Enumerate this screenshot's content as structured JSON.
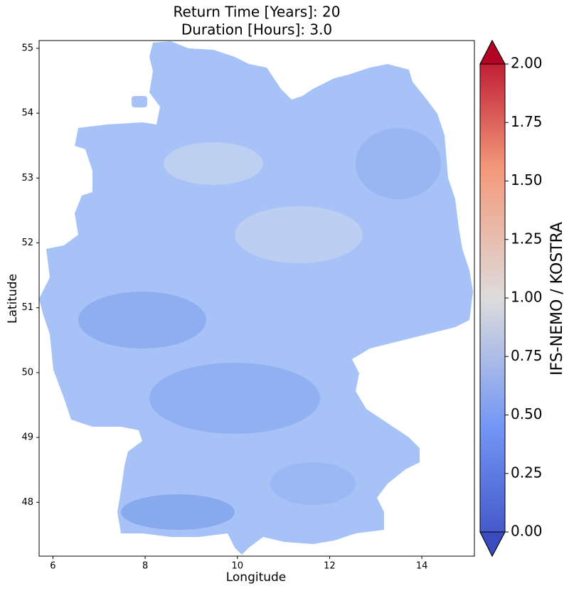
{
  "chart_data": {
    "type": "map",
    "title": "Return Time [Years]: 20",
    "subtitle": "Duration [Hours]: 3.0",
    "x_label": "Longitude",
    "y_label": "Latitude",
    "xlim": [
      5.7,
      15.14
    ],
    "ylim": [
      47.17,
      55.12
    ],
    "xticks": [
      6,
      8,
      10,
      12,
      14
    ],
    "yticks": [
      48,
      49,
      50,
      51,
      52,
      53,
      54,
      55
    ],
    "colorbar": {
      "label": "IFS-NEMO / KOSTRA",
      "colormap": "coolwarm",
      "lim": [
        0,
        2
      ],
      "ticks": [
        {
          "value": 0,
          "label": "0.00"
        },
        {
          "value": 0.25,
          "label": "0.25"
        },
        {
          "value": 0.5,
          "label": "0.50"
        },
        {
          "value": 0.75,
          "label": "0.75"
        },
        {
          "value": 1,
          "label": "1.00"
        },
        {
          "value": 1.25,
          "label": "1.25"
        },
        {
          "value": 1.5,
          "label": "1.50"
        },
        {
          "value": 1.75,
          "label": "1.75"
        },
        {
          "value": 2,
          "label": "2.00"
        }
      ]
    }
  }
}
